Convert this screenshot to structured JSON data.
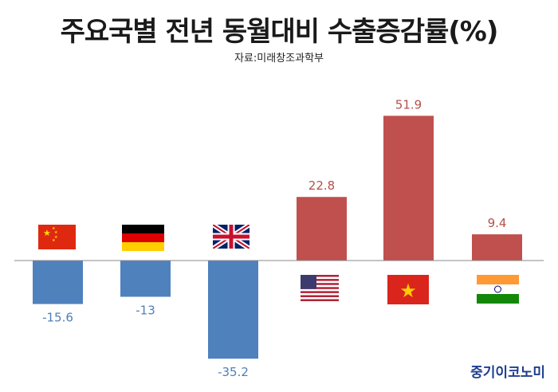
{
  "title": "주요국별 전년 동월대비 수출증감률(%)",
  "source": "자료:미래창조과학부",
  "logo": "중기이코노미",
  "colors": {
    "positive": "#c0504d",
    "negative": "#4f81bd",
    "positive_label": "#b5504a",
    "negative_label": "#4f7fb8",
    "baseline": "#888888"
  },
  "chart_data": {
    "type": "bar",
    "title": "주요국별 전년 동월대비 수출증감률(%)",
    "xlabel": "",
    "ylabel": "",
    "categories": [
      "china-flag",
      "germany-flag",
      "uk-flag",
      "usa-flag",
      "vietnam-flag",
      "india-flag"
    ],
    "values": [
      -15.6,
      -13,
      -35.2,
      22.8,
      51.9,
      9.4
    ],
    "value_labels": [
      "-15.6",
      "-13",
      "-35.2",
      "22.8",
      "51.9",
      "9.4"
    ],
    "ylim": [
      -40,
      60
    ],
    "grid": false,
    "legend": "none"
  }
}
